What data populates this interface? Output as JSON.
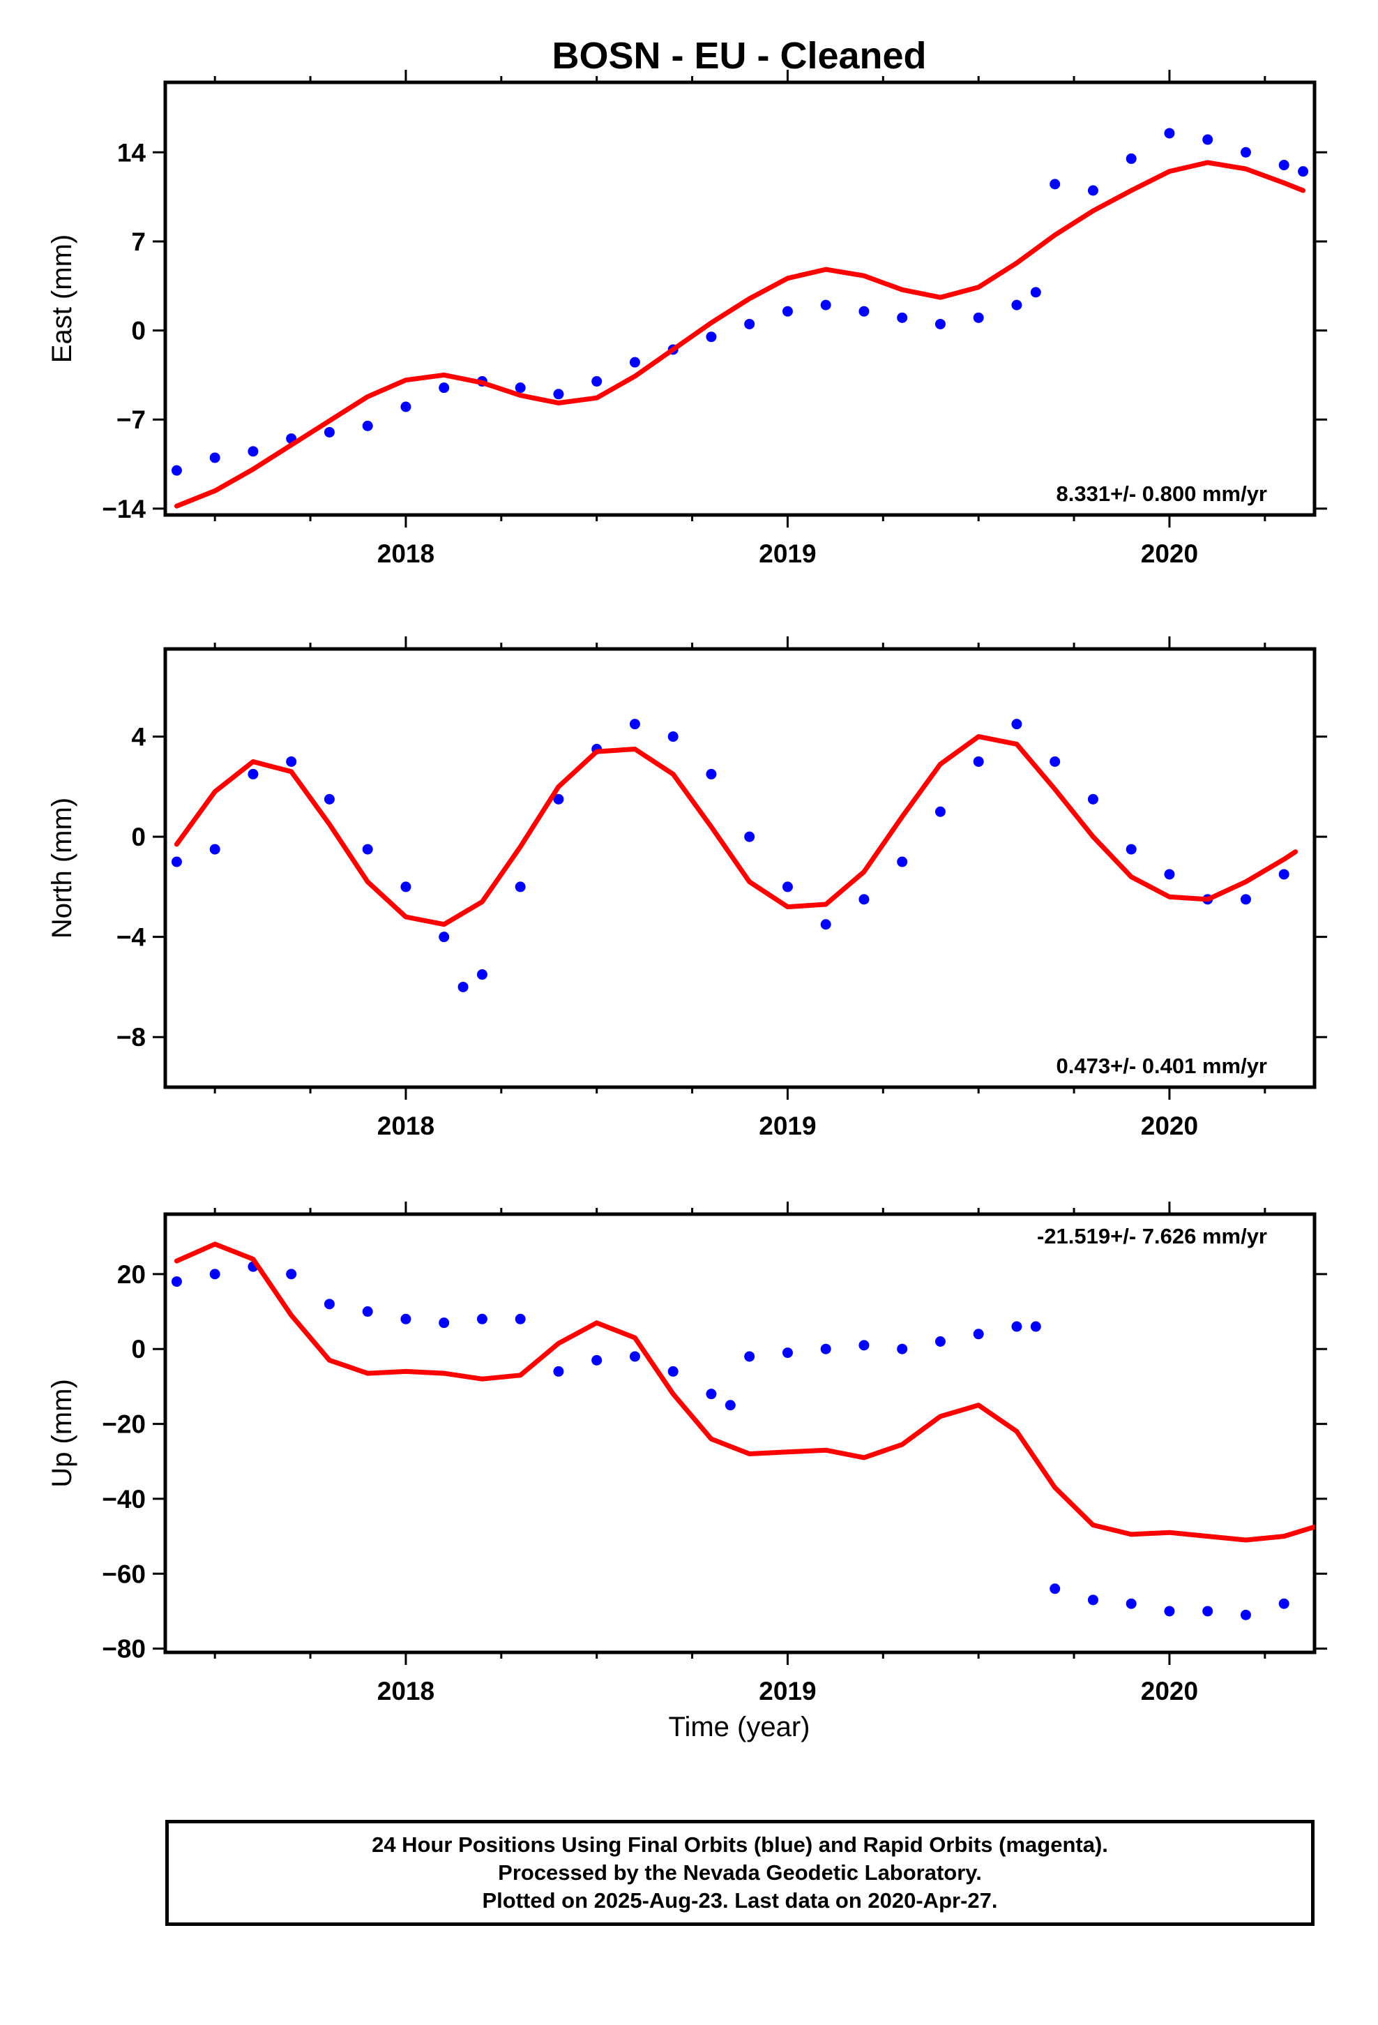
{
  "title": "BOSN  - EU - Cleaned",
  "xlabel": "Time (year)",
  "x_ticks": [
    2018,
    2019,
    2020
  ],
  "x_tick_labels": [
    "2018",
    "2019",
    "2020"
  ],
  "x_range": [
    2017.37,
    2020.38
  ],
  "colors": {
    "final_orbits": "#0000ff",
    "rapid_orbits": "#ff00ff",
    "model_fit": "#ff0000"
  },
  "caption": {
    "line1": "24 Hour Positions Using Final Orbits (blue) and Rapid Orbits (magenta).",
    "line2": "Processed by the Nevada Geodetic Laboratory.",
    "line3": "Plotted on 2025-Aug-23. Last data on 2020-Apr-27."
  },
  "chart_data": [
    {
      "type": "scatter",
      "ylabel": "East (mm)",
      "ylim": [
        -14.5,
        19.5
      ],
      "y_ticks": [
        -14,
        -7,
        0,
        7,
        14
      ],
      "y_tick_labels": [
        "−14",
        "−7",
        "0",
        "7",
        "14"
      ],
      "rate": "8.331+/- 0.800 mm/yr",
      "rate_position": "bottom-right",
      "series": [
        {
          "kind": "points",
          "color": "#0000ff",
          "x": [
            2017.4,
            2017.5,
            2017.6,
            2017.7,
            2017.8,
            2017.9,
            2018.0,
            2018.1,
            2018.2,
            2018.3,
            2018.4,
            2018.5,
            2018.6,
            2018.7,
            2018.8,
            2018.9,
            2019.0,
            2019.1,
            2019.2,
            2019.3,
            2019.4,
            2019.5,
            2019.6,
            2019.65,
            2019.7,
            2019.8,
            2019.9,
            2020.0,
            2020.1,
            2020.2,
            2020.3,
            2020.35
          ],
          "y": [
            -11,
            -10,
            -9.5,
            -8.5,
            -8,
            -7.5,
            -6,
            -4.5,
            -4,
            -4.5,
            -5,
            -4,
            -2.5,
            -1.5,
            -0.5,
            0.5,
            1.5,
            2,
            1.5,
            1,
            0.5,
            1,
            2,
            3,
            11.5,
            11,
            13.5,
            15.5,
            15,
            14,
            13,
            12.5
          ]
        },
        {
          "kind": "line",
          "color": "#ff0000",
          "x": [
            2017.4,
            2017.5,
            2017.6,
            2017.7,
            2017.8,
            2017.9,
            2018.0,
            2018.1,
            2018.2,
            2018.3,
            2018.4,
            2018.5,
            2018.6,
            2018.7,
            2018.8,
            2018.9,
            2019.0,
            2019.1,
            2019.2,
            2019.3,
            2019.4,
            2019.5,
            2019.6,
            2019.7,
            2019.8,
            2019.9,
            2020.0,
            2020.1,
            2020.2,
            2020.3,
            2020.35
          ],
          "y": [
            -13.8,
            -12.6,
            -10.9,
            -9.0,
            -7.1,
            -5.2,
            -3.9,
            -3.5,
            -4.1,
            -5.1,
            -5.7,
            -5.3,
            -3.6,
            -1.5,
            0.6,
            2.5,
            4.1,
            4.8,
            4.3,
            3.2,
            2.6,
            3.4,
            5.3,
            7.5,
            9.4,
            11.0,
            12.5,
            13.2,
            12.7,
            11.6,
            11.0
          ]
        }
      ]
    },
    {
      "type": "scatter",
      "ylabel": "North (mm)",
      "ylim": [
        -10,
        7.5
      ],
      "y_ticks": [
        -8,
        -4,
        0,
        4
      ],
      "y_tick_labels": [
        "−8",
        "−4",
        "0",
        "4"
      ],
      "rate": "0.473+/- 0.401 mm/yr",
      "rate_position": "bottom-right",
      "series": [
        {
          "kind": "points",
          "color": "#0000ff",
          "x": [
            2017.4,
            2017.5,
            2017.6,
            2017.7,
            2017.8,
            2017.9,
            2018.0,
            2018.1,
            2018.15,
            2018.2,
            2018.3,
            2018.4,
            2018.5,
            2018.6,
            2018.7,
            2018.8,
            2018.9,
            2019.0,
            2019.1,
            2019.2,
            2019.3,
            2019.4,
            2019.5,
            2019.6,
            2019.7,
            2019.8,
            2019.9,
            2020.0,
            2020.1,
            2020.2,
            2020.3
          ],
          "y": [
            -1,
            -0.5,
            2.5,
            3,
            1.5,
            -0.5,
            -2,
            -4,
            -6,
            -5.5,
            -2,
            1.5,
            3.5,
            4.5,
            4,
            2.5,
            0,
            -2,
            -3.5,
            -2.5,
            -1,
            1,
            3,
            4.5,
            3,
            1.5,
            -0.5,
            -1.5,
            -2.5,
            -2.5,
            -1.5
          ]
        },
        {
          "kind": "line",
          "color": "#ff0000",
          "x": [
            2017.4,
            2017.5,
            2017.6,
            2017.7,
            2017.8,
            2017.9,
            2018.0,
            2018.1,
            2018.2,
            2018.3,
            2018.4,
            2018.5,
            2018.6,
            2018.7,
            2018.8,
            2018.9,
            2019.0,
            2019.1,
            2019.2,
            2019.3,
            2019.4,
            2019.5,
            2019.6,
            2019.7,
            2019.8,
            2019.9,
            2020.0,
            2020.1,
            2020.2,
            2020.3,
            2020.33
          ],
          "y": [
            -0.3,
            1.8,
            3.0,
            2.6,
            0.5,
            -1.8,
            -3.2,
            -3.5,
            -2.6,
            -0.4,
            2.0,
            3.4,
            3.5,
            2.5,
            0.4,
            -1.8,
            -2.8,
            -2.7,
            -1.4,
            0.8,
            2.9,
            4.0,
            3.7,
            1.9,
            0.0,
            -1.6,
            -2.4,
            -2.5,
            -1.8,
            -0.9,
            -0.6
          ]
        }
      ]
    },
    {
      "type": "scatter",
      "ylabel": "Up (mm)",
      "ylim": [
        -81,
        36
      ],
      "y_ticks": [
        -80,
        -60,
        -40,
        -20,
        0,
        20
      ],
      "y_tick_labels": [
        "−80",
        "−60",
        "−40",
        "−20",
        "0",
        "20"
      ],
      "rate": "-21.519+/- 7.626 mm/yr",
      "rate_position": "top-right",
      "series": [
        {
          "kind": "points",
          "color": "#0000ff",
          "x": [
            2017.4,
            2017.5,
            2017.6,
            2017.7,
            2017.8,
            2017.9,
            2018.0,
            2018.1,
            2018.2,
            2018.3,
            2018.4,
            2018.5,
            2018.6,
            2018.7,
            2018.8,
            2018.85,
            2018.9,
            2019.0,
            2019.1,
            2019.2,
            2019.3,
            2019.4,
            2019.5,
            2019.6,
            2019.65,
            2019.7,
            2019.8,
            2019.9,
            2020.0,
            2020.1,
            2020.2,
            2020.3
          ],
          "y": [
            18,
            20,
            22,
            20,
            12,
            10,
            8,
            7,
            8,
            8,
            -6,
            -3,
            -2,
            -6,
            -12,
            -15,
            -2,
            -1,
            0,
            1,
            0,
            2,
            4,
            6,
            6,
            -64,
            -67,
            -68,
            -70,
            -70,
            -71,
            -68
          ]
        },
        {
          "kind": "line",
          "color": "#ff0000",
          "x": [
            2017.4,
            2017.5,
            2017.6,
            2017.7,
            2017.8,
            2017.9,
            2018.0,
            2018.1,
            2018.2,
            2018.3,
            2018.4,
            2018.5,
            2018.6,
            2018.7,
            2018.8,
            2018.9,
            2019.0,
            2019.1,
            2019.2,
            2019.3,
            2019.4,
            2019.5,
            2019.6,
            2019.7,
            2019.8,
            2019.9,
            2020.0,
            2020.1,
            2020.2,
            2020.3,
            2020.38
          ],
          "y": [
            23.5,
            28,
            24,
            9,
            -3,
            -6.5,
            -6,
            -6.5,
            -8,
            -7,
            1.5,
            7,
            3,
            -12,
            -24,
            -28,
            -27.5,
            -27,
            -29,
            -25.5,
            -18,
            -15,
            -22,
            -37,
            -47,
            -49.5,
            -49,
            -50,
            -51,
            -50,
            -47.5
          ]
        }
      ]
    }
  ]
}
